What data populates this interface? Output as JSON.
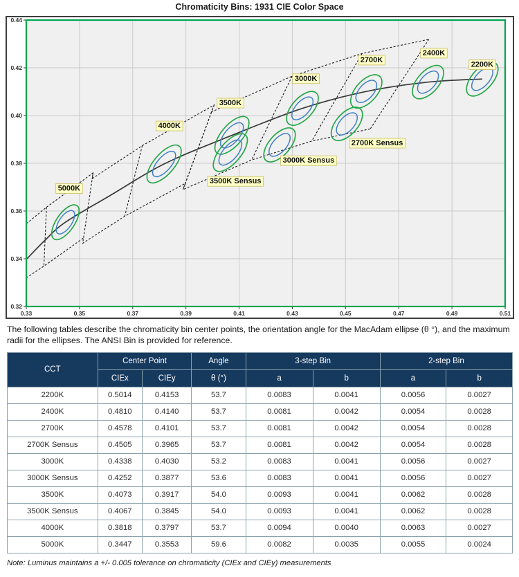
{
  "title": "Chromaticity Bins: 1931 CIE Color Space",
  "intro": "The following tables describe the chromaticity bin center points, the orientation angle for the MacAdam ellipse (θ °), and the maximum radii for the ellipses. The ANSI Bin is provided for reference.",
  "note": "Note:  Luminus maintains a +/- 0.005 tolerance on chromaticity (CIEx and CIEy) measurements",
  "chart_data": {
    "type": "scatter",
    "title": "Chromaticity Bins: 1931 CIE Color Space",
    "xlabel": "",
    "ylabel": "",
    "xlim": [
      0.33,
      0.51
    ],
    "ylim": [
      0.32,
      0.44
    ],
    "x_ticks": [
      "0.33",
      "0.35",
      "0.37",
      "0.39",
      "0.41",
      "0.43",
      "0.45",
      "0.47",
      "0.49",
      "0.51"
    ],
    "y_ticks": [
      "0.32",
      "0.34",
      "0.36",
      "0.38",
      "0.40",
      "0.42",
      "0.44"
    ],
    "grid": true,
    "legend": "none",
    "colors": {
      "plot_bg": "#f0f0f0",
      "grid": "#c9c9c9",
      "plot_border": "#00a550",
      "outer_border": "#3d3d3d",
      "locus": "#383838",
      "dash": "#1a1a1a",
      "step3": "#27a74a",
      "step2": "#3f80c4",
      "label_bg": "#ffffc6",
      "label_border": "#c9bd62",
      "tick_text": "#333333"
    },
    "planckian_locus": [
      [
        0.33,
        0.3397
      ],
      [
        0.337,
        0.3477
      ],
      [
        0.3447,
        0.3553
      ],
      [
        0.362,
        0.3668
      ],
      [
        0.3818,
        0.3797
      ],
      [
        0.4073,
        0.3917
      ],
      [
        0.4338,
        0.403
      ],
      [
        0.4578,
        0.4101
      ],
      [
        0.481,
        0.414
      ],
      [
        0.5014,
        0.4153
      ]
    ],
    "ansi_band": {
      "upper": [
        [
          0.33,
          0.3547
        ],
        [
          0.3376,
          0.3616
        ],
        [
          0.3551,
          0.376
        ],
        [
          0.3548,
          0.3736
        ],
        [
          0.3736,
          0.3874
        ],
        [
          0.4006,
          0.4044
        ],
        [
          0.3996,
          0.4015
        ],
        [
          0.4299,
          0.4165
        ],
        [
          0.4562,
          0.426
        ],
        [
          0.4813,
          0.4319
        ]
      ],
      "lower": [
        [
          0.33,
          0.332
        ],
        [
          0.3366,
          0.3369
        ],
        [
          0.3515,
          0.3487
        ],
        [
          0.3512,
          0.3465
        ],
        [
          0.367,
          0.3578
        ],
        [
          0.3898,
          0.3716
        ],
        [
          0.3889,
          0.369
        ],
        [
          0.4147,
          0.3814
        ],
        [
          0.4373,
          0.3893
        ],
        [
          0.4593,
          0.3944
        ]
      ],
      "dividers": [
        [
          [
            0.3376,
            0.3616
          ],
          [
            0.3366,
            0.3369
          ]
        ],
        [
          [
            0.3551,
            0.376
          ],
          [
            0.3515,
            0.3487
          ]
        ],
        [
          [
            0.3736,
            0.3874
          ],
          [
            0.367,
            0.3578
          ]
        ],
        [
          [
            0.4006,
            0.4044
          ],
          [
            0.3898,
            0.3716
          ]
        ],
        [
          [
            0.3996,
            0.4015
          ],
          [
            0.3889,
            0.369
          ]
        ],
        [
          [
            0.4299,
            0.4165
          ],
          [
            0.4147,
            0.3814
          ]
        ],
        [
          [
            0.4562,
            0.426
          ],
          [
            0.4373,
            0.3893
          ]
        ],
        [
          [
            0.4813,
            0.4319
          ],
          [
            0.4593,
            0.3944
          ]
        ]
      ]
    },
    "bins": [
      {
        "label": "2200K",
        "cx": 0.5014,
        "cy": 0.4153,
        "theta": 53.7,
        "a3": 0.0083,
        "b3": 0.0041,
        "a2": 0.0056,
        "b2": 0.0027,
        "label_pos": [
          0.5014,
          0.4216
        ]
      },
      {
        "label": "2400K",
        "cx": 0.481,
        "cy": 0.414,
        "theta": 53.7,
        "a3": 0.0081,
        "b3": 0.0042,
        "a2": 0.0054,
        "b2": 0.0028,
        "label_pos": [
          0.4832,
          0.4264
        ]
      },
      {
        "label": "2700K",
        "cx": 0.4578,
        "cy": 0.4101,
        "theta": 53.7,
        "a3": 0.0081,
        "b3": 0.0042,
        "a2": 0.0054,
        "b2": 0.0028,
        "label_pos": [
          0.4598,
          0.4235
        ]
      },
      {
        "label": "2700K Sensus",
        "cx": 0.4505,
        "cy": 0.3965,
        "theta": 53.7,
        "a3": 0.0081,
        "b3": 0.0042,
        "a2": 0.0054,
        "b2": 0.0028,
        "label_pos": [
          0.4619,
          0.3887
        ]
      },
      {
        "label": "3000K",
        "cx": 0.4338,
        "cy": 0.403,
        "theta": 53.2,
        "a3": 0.0083,
        "b3": 0.0041,
        "a2": 0.0056,
        "b2": 0.0027,
        "label_pos": [
          0.4351,
          0.4157
        ]
      },
      {
        "label": "3000K Sensus",
        "cx": 0.4252,
        "cy": 0.3877,
        "theta": 53.6,
        "a3": 0.0083,
        "b3": 0.0041,
        "a2": 0.0056,
        "b2": 0.0027,
        "label_pos": [
          0.4361,
          0.3814
        ]
      },
      {
        "label": "3500K",
        "cx": 0.4073,
        "cy": 0.3917,
        "theta": 54.0,
        "a3": 0.0093,
        "b3": 0.0041,
        "a2": 0.0062,
        "b2": 0.0028,
        "label_pos": [
          0.4067,
          0.4055
        ]
      },
      {
        "label": "3500K Sensus",
        "cx": 0.4067,
        "cy": 0.3845,
        "theta": 54.0,
        "a3": 0.0093,
        "b3": 0.0041,
        "a2": 0.0062,
        "b2": 0.0028,
        "label_pos": [
          0.4086,
          0.3727
        ]
      },
      {
        "label": "4000K",
        "cx": 0.3818,
        "cy": 0.3797,
        "theta": 53.7,
        "a3": 0.0094,
        "b3": 0.004,
        "a2": 0.0063,
        "b2": 0.0027,
        "label_pos": [
          0.3838,
          0.3959
        ]
      },
      {
        "label": "5000K",
        "cx": 0.3447,
        "cy": 0.3553,
        "theta": 59.6,
        "a3": 0.0082,
        "b3": 0.0035,
        "a2": 0.0055,
        "b2": 0.0024,
        "label_pos": [
          0.3461,
          0.3697
        ]
      }
    ]
  },
  "table": {
    "header": {
      "cct": "CCT",
      "center_point": "Center Point",
      "angle": "Angle",
      "bin3": "3-step Bin",
      "bin2": "2-step Bin",
      "ciex": "CIEx",
      "ciey": "CIEy",
      "theta": "θ (°)",
      "a": "a",
      "b": "b"
    },
    "rows": [
      [
        "2200K",
        "0.5014",
        "0.4153",
        "53.7",
        "0.0083",
        "0.0041",
        "0.0056",
        "0.0027"
      ],
      [
        "2400K",
        "0.4810",
        "0.4140",
        "53.7",
        "0.0081",
        "0.0042",
        "0.0054",
        "0.0028"
      ],
      [
        "2700K",
        "0.4578",
        "0.4101",
        "53.7",
        "0.0081",
        "0.0042",
        "0.0054",
        "0.0028"
      ],
      [
        "2700K Sensus",
        "0.4505",
        "0.3965",
        "53.7",
        "0.0081",
        "0.0042",
        "0.0054",
        "0.0028"
      ],
      [
        "3000K",
        "0.4338",
        "0.4030",
        "53.2",
        "0.0083",
        "0.0041",
        "0.0056",
        "0.0027"
      ],
      [
        "3000K Sensus",
        "0.4252",
        "0.3877",
        "53.6",
        "0.0083",
        "0.0041",
        "0.0056",
        "0.0027"
      ],
      [
        "3500K",
        "0.4073",
        "0.3917",
        "54.0",
        "0.0093",
        "0.0041",
        "0.0062",
        "0.0028"
      ],
      [
        "3500K Sensus",
        "0.4067",
        "0.3845",
        "54.0",
        "0.0093",
        "0.0041",
        "0.0062",
        "0.0028"
      ],
      [
        "4000K",
        "0.3818",
        "0.3797",
        "53.7",
        "0.0094",
        "0.0040",
        "0.0063",
        "0.0027"
      ],
      [
        "5000K",
        "0.3447",
        "0.3553",
        "59.6",
        "0.0082",
        "0.0035",
        "0.0055",
        "0.0024"
      ]
    ]
  }
}
